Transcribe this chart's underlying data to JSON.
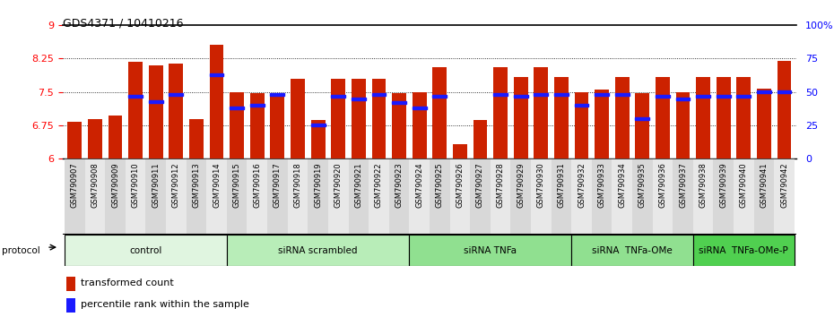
{
  "title": "GDS4371 / 10410216",
  "samples": [
    "GSM790907",
    "GSM790908",
    "GSM790909",
    "GSM790910",
    "GSM790911",
    "GSM790912",
    "GSM790913",
    "GSM790914",
    "GSM790915",
    "GSM790916",
    "GSM790917",
    "GSM790918",
    "GSM790919",
    "GSM790920",
    "GSM790921",
    "GSM790922",
    "GSM790923",
    "GSM790924",
    "GSM790925",
    "GSM790926",
    "GSM790927",
    "GSM790928",
    "GSM790929",
    "GSM790930",
    "GSM790931",
    "GSM790932",
    "GSM790933",
    "GSM790934",
    "GSM790935",
    "GSM790936",
    "GSM790937",
    "GSM790938",
    "GSM790939",
    "GSM790940",
    "GSM790941",
    "GSM790942"
  ],
  "transformed_count": [
    6.82,
    6.88,
    6.97,
    8.17,
    8.1,
    8.13,
    6.88,
    8.57,
    7.5,
    7.47,
    7.47,
    7.8,
    6.87,
    7.8,
    7.8,
    7.8,
    7.47,
    7.5,
    8.05,
    6.33,
    6.87,
    8.05,
    7.83,
    8.05,
    7.83,
    7.5,
    7.55,
    7.83,
    7.47,
    7.83,
    7.5,
    7.83,
    7.83,
    7.83,
    7.57,
    8.2
  ],
  "percentile_rank": [
    35,
    40,
    40,
    47,
    43,
    48,
    30,
    63,
    38,
    40,
    48,
    65,
    25,
    47,
    45,
    48,
    42,
    38,
    47,
    25,
    38,
    48,
    47,
    48,
    48,
    40,
    48,
    48,
    30,
    47,
    45,
    47,
    47,
    47,
    50,
    50
  ],
  "groups": [
    {
      "name": "control",
      "start": 0,
      "end": 8,
      "color": "#e0f5e0"
    },
    {
      "name": "siRNA scrambled",
      "start": 8,
      "end": 17,
      "color": "#b8edb8"
    },
    {
      "name": "siRNA TNFa",
      "start": 17,
      "end": 25,
      "color": "#90e090"
    },
    {
      "name": "siRNA  TNFa-OMe",
      "start": 25,
      "end": 31,
      "color": "#90e090"
    },
    {
      "name": "siRNA  TNFa-OMe-P",
      "start": 31,
      "end": 36,
      "color": "#50d050"
    }
  ],
  "bar_color": "#cc2200",
  "percentile_color": "#1a1aff",
  "ymin": 6.0,
  "ymax": 9.0,
  "yticks": [
    6.0,
    6.75,
    7.5,
    8.25,
    9.0
  ],
  "ytick_labels": [
    "6",
    "6.75",
    "7.5",
    "8.25",
    "9"
  ],
  "right_yticks": [
    0,
    25,
    50,
    75,
    100
  ],
  "right_ytick_labels": [
    "0",
    "25",
    "50",
    "75",
    "100%"
  ],
  "grid_lines": [
    6.75,
    7.5,
    8.25
  ]
}
